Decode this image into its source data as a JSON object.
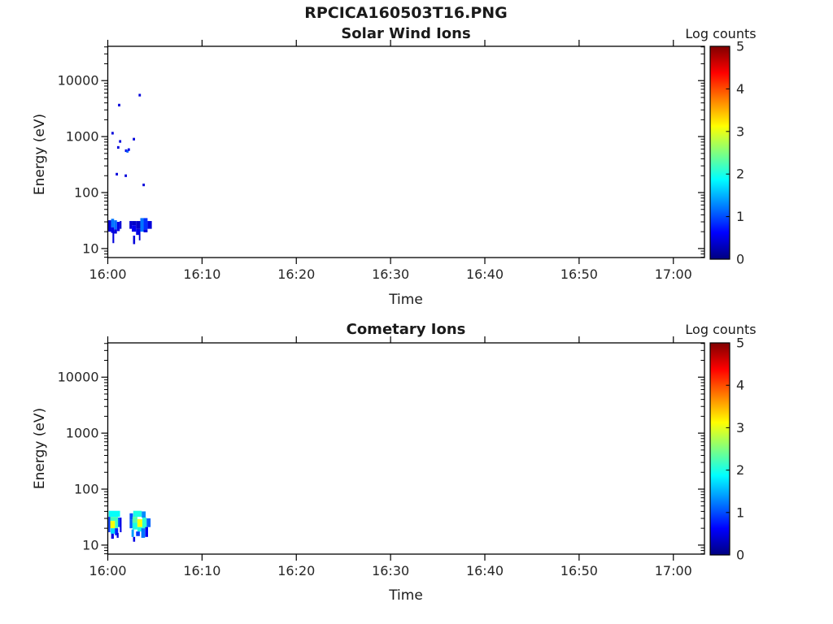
{
  "figure": {
    "title": "RPCICA160503T16.PNG",
    "background_color": "#ffffff",
    "axis_color": "#000000",
    "text_color": "#1a1a1a"
  },
  "cell_format": "[t_start_minutes_after_16:00, duration_minutes, energy_low_eV, energy_high_eV, log_counts]",
  "dot_format": "[t_minutes_after_16:00, energy_eV, log_counts]",
  "chart_data": [
    {
      "type": "heatmap",
      "title": "Solar Wind Ions",
      "xlabel": "Time",
      "ylabel": "Energy (eV)",
      "y_scale": "log",
      "grid": false,
      "x_range_minutes": [
        0,
        63.3
      ],
      "y_range_ev": [
        6.9,
        41000
      ],
      "x_ticks": [
        {
          "m": 0,
          "label": "16:00"
        },
        {
          "m": 10,
          "label": "16:10"
        },
        {
          "m": 20,
          "label": "16:20"
        },
        {
          "m": 30,
          "label": "16:30"
        },
        {
          "m": 40,
          "label": "16:40"
        },
        {
          "m": 50,
          "label": "16:50"
        },
        {
          "m": 60,
          "label": "17:00"
        }
      ],
      "y_ticks": [
        {
          "v": 10,
          "label": "10"
        },
        {
          "v": 100,
          "label": "100"
        },
        {
          "v": 1000,
          "label": "1000"
        },
        {
          "v": 10000,
          "label": "10000"
        }
      ],
      "colorbar": {
        "label": "Log counts",
        "colormap": "jet",
        "range": [
          0,
          5
        ],
        "ticks": [
          {
            "v": 0,
            "label": "0"
          },
          {
            "v": 1,
            "label": "1"
          },
          {
            "v": 2,
            "label": "2"
          },
          {
            "v": 3,
            "label": "3"
          },
          {
            "v": 4,
            "label": "4"
          },
          {
            "v": 5,
            "label": "5"
          }
        ]
      },
      "cells": [
        [
          0.05,
          0.3,
          20,
          32,
          0.45
        ],
        [
          0.35,
          0.32,
          24,
          34,
          1.2
        ],
        [
          0.35,
          0.32,
          19,
          24,
          0.5
        ],
        [
          0.67,
          0.3,
          22,
          32,
          1.15
        ],
        [
          0.67,
          0.3,
          18.5,
          22,
          0.45
        ],
        [
          0.97,
          0.3,
          20.5,
          30,
          0.5
        ],
        [
          1.27,
          0.18,
          22.5,
          31,
          0.4
        ],
        [
          0.5,
          0.18,
          12.5,
          20,
          0.45
        ],
        [
          2.3,
          0.25,
          22.5,
          31,
          0.4
        ],
        [
          2.55,
          0.45,
          26,
          31,
          0.35
        ],
        [
          2.55,
          0.45,
          20,
          26,
          0.55
        ],
        [
          3.0,
          0.45,
          22.5,
          31,
          0.35
        ],
        [
          3.0,
          0.45,
          17.5,
          22.5,
          0.5
        ],
        [
          3.45,
          0.35,
          20,
          35,
          1.2
        ],
        [
          3.8,
          0.42,
          22,
          35,
          0.85
        ],
        [
          3.8,
          0.42,
          19.5,
          22,
          0.45
        ],
        [
          4.22,
          0.45,
          22.5,
          31,
          0.45
        ],
        [
          2.68,
          0.22,
          12,
          17,
          0.45
        ],
        [
          3.3,
          0.16,
          14,
          20,
          0.4
        ]
      ],
      "dots": [
        [
          3.38,
          5500,
          0.45
        ],
        [
          1.2,
          3650,
          0.45
        ],
        [
          0.5,
          1150,
          0.45
        ],
        [
          1.3,
          820,
          0.45
        ],
        [
          2.76,
          900,
          0.45
        ],
        [
          1.1,
          640,
          0.45
        ],
        [
          1.93,
          560,
          0.5
        ],
        [
          2.08,
          545,
          1.1
        ],
        [
          2.22,
          585,
          0.5
        ],
        [
          0.95,
          213,
          0.45
        ],
        [
          1.9,
          200,
          0.45
        ],
        [
          3.8,
          137,
          0.45
        ]
      ]
    },
    {
      "type": "heatmap",
      "title": "Cometary Ions",
      "xlabel": "Time",
      "ylabel": "Energy (eV)",
      "y_scale": "log",
      "grid": false,
      "x_range_minutes": [
        0,
        63.3
      ],
      "y_range_ev": [
        6.9,
        41000
      ],
      "x_ticks": [
        {
          "m": 0,
          "label": "16:00"
        },
        {
          "m": 10,
          "label": "16:10"
        },
        {
          "m": 20,
          "label": "16:20"
        },
        {
          "m": 30,
          "label": "16:30"
        },
        {
          "m": 40,
          "label": "16:40"
        },
        {
          "m": 50,
          "label": "16:50"
        },
        {
          "m": 60,
          "label": "17:00"
        }
      ],
      "y_ticks": [
        {
          "v": 10,
          "label": "10"
        },
        {
          "v": 100,
          "label": "100"
        },
        {
          "v": 1000,
          "label": "1000"
        },
        {
          "v": 10000,
          "label": "10000"
        }
      ],
      "colorbar": {
        "label": "Log counts",
        "colormap": "jet",
        "range": [
          0,
          5
        ],
        "ticks": [
          {
            "v": 0,
            "label": "0"
          },
          {
            "v": 1,
            "label": "1"
          },
          {
            "v": 2,
            "label": "2"
          },
          {
            "v": 3,
            "label": "3"
          },
          {
            "v": 4,
            "label": "4"
          },
          {
            "v": 5,
            "label": "5"
          }
        ]
      },
      "cells": [
        [
          0.06,
          0.2,
          17,
          32,
          0.9
        ],
        [
          0.1,
          1.2,
          32,
          41,
          1.9
        ],
        [
          0.26,
          0.55,
          27,
          32,
          2.2
        ],
        [
          0.26,
          0.5,
          20,
          27,
          3.1
        ],
        [
          0.76,
          0.32,
          20,
          32,
          2.2
        ],
        [
          1.08,
          0.25,
          21,
          31,
          1.1
        ],
        [
          1.28,
          0.18,
          17,
          31,
          0.5
        ],
        [
          0.3,
          0.45,
          16,
          20,
          1.7
        ],
        [
          0.75,
          0.35,
          15,
          20,
          0.8
        ],
        [
          0.36,
          0.28,
          13,
          16,
          0.5
        ],
        [
          0.95,
          0.2,
          13.5,
          16.5,
          0.5
        ],
        [
          2.32,
          0.35,
          29,
          37,
          1.0
        ],
        [
          2.7,
          0.9,
          32,
          41,
          2.0
        ],
        [
          3.6,
          0.42,
          31,
          40,
          1.3
        ],
        [
          2.32,
          0.3,
          20,
          29,
          1.1
        ],
        [
          2.62,
          0.52,
          25,
          32,
          2.3
        ],
        [
          2.62,
          0.52,
          19,
          25,
          2.0
        ],
        [
          3.14,
          0.52,
          21,
          29,
          3.1
        ],
        [
          3.14,
          0.52,
          17.5,
          21,
          2.0
        ],
        [
          3.66,
          0.46,
          20,
          31,
          2.1
        ],
        [
          4.12,
          0.42,
          21,
          30,
          1.1
        ],
        [
          2.52,
          0.25,
          14,
          19,
          1.4
        ],
        [
          3.0,
          0.4,
          14.5,
          17.5,
          0.9
        ],
        [
          3.55,
          0.4,
          13.5,
          20,
          1.2
        ],
        [
          2.68,
          0.22,
          11.5,
          14,
          0.5
        ],
        [
          3.97,
          0.3,
          14,
          21,
          0.55
        ]
      ],
      "dots": []
    }
  ]
}
